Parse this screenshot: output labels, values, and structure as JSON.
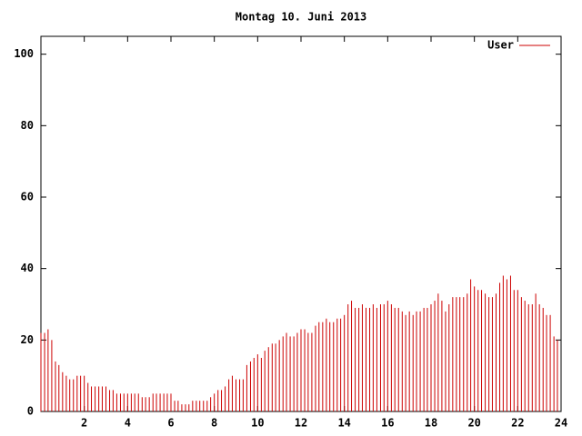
{
  "chart_data": {
    "type": "impulse",
    "title": "Montag 10. Juni 2013",
    "x": [
      0,
      0.17,
      0.33,
      0.5,
      0.67,
      0.83,
      1,
      1.17,
      1.33,
      1.5,
      1.67,
      1.83,
      2,
      2.17,
      2.33,
      2.5,
      2.67,
      2.83,
      3,
      3.17,
      3.33,
      3.5,
      3.67,
      3.83,
      4,
      4.17,
      4.33,
      4.5,
      4.67,
      4.83,
      5,
      5.17,
      5.33,
      5.5,
      5.67,
      5.83,
      6,
      6.17,
      6.33,
      6.5,
      6.67,
      6.83,
      7,
      7.17,
      7.33,
      7.5,
      7.67,
      7.83,
      8,
      8.17,
      8.33,
      8.5,
      8.67,
      8.83,
      9,
      9.17,
      9.33,
      9.5,
      9.67,
      9.83,
      10,
      10.17,
      10.33,
      10.5,
      10.67,
      10.83,
      11,
      11.17,
      11.33,
      11.5,
      11.67,
      11.83,
      12,
      12.17,
      12.33,
      12.5,
      12.67,
      12.83,
      13,
      13.17,
      13.33,
      13.5,
      13.67,
      13.83,
      14,
      14.17,
      14.33,
      14.5,
      14.67,
      14.83,
      15,
      15.17,
      15.33,
      15.5,
      15.67,
      15.83,
      16,
      16.17,
      16.33,
      16.5,
      16.67,
      16.83,
      17,
      17.17,
      17.33,
      17.5,
      17.67,
      17.83,
      18,
      18.17,
      18.33,
      18.5,
      18.67,
      18.83,
      19,
      19.17,
      19.33,
      19.5,
      19.67,
      19.83,
      20,
      20.17,
      20.33,
      20.5,
      20.67,
      20.83,
      21,
      21.17,
      21.33,
      21.5,
      21.67,
      21.83,
      22,
      22.17,
      22.33,
      22.5,
      22.67,
      22.83,
      23,
      23.17,
      23.33,
      23.5,
      23.67,
      23.83
    ],
    "series": [
      {
        "name": "User",
        "color": "#cc0000",
        "values": [
          22,
          22,
          23,
          20,
          14,
          13,
          11,
          10,
          9,
          9,
          10,
          10,
          10,
          8,
          7,
          7,
          7,
          7,
          7,
          6,
          6,
          5,
          5,
          5,
          5,
          5,
          5,
          5,
          4,
          4,
          4,
          5,
          5,
          5,
          5,
          5,
          5,
          3,
          3,
          2,
          2,
          2,
          3,
          3,
          3,
          3,
          3,
          4,
          5,
          6,
          6,
          7,
          9,
          10,
          9,
          9,
          9,
          13,
          14,
          15,
          16,
          15,
          17,
          18,
          19,
          19,
          20,
          21,
          22,
          21,
          21,
          22,
          23,
          23,
          22,
          22,
          24,
          25,
          25,
          26,
          25,
          25,
          26,
          26,
          27,
          30,
          31,
          29,
          29,
          30,
          29,
          29,
          30,
          29,
          30,
          30,
          31,
          30,
          29,
          29,
          28,
          27,
          28,
          27,
          28,
          28,
          29,
          29,
          30,
          31,
          33,
          31,
          28,
          30,
          32,
          32,
          32,
          32,
          33,
          37,
          35,
          34,
          34,
          33,
          32,
          32,
          33,
          36,
          38,
          37,
          38,
          34,
          34,
          32,
          31,
          30,
          30,
          33,
          30,
          29,
          27,
          27,
          21,
          20
        ]
      }
    ],
    "xlim": [
      0,
      24
    ],
    "xticks": [
      2,
      4,
      6,
      8,
      10,
      12,
      14,
      16,
      18,
      20,
      22,
      24
    ],
    "ylim": [
      0,
      105
    ],
    "yticks": [
      0,
      20,
      40,
      60,
      80,
      100
    ],
    "legend": "top-right"
  }
}
